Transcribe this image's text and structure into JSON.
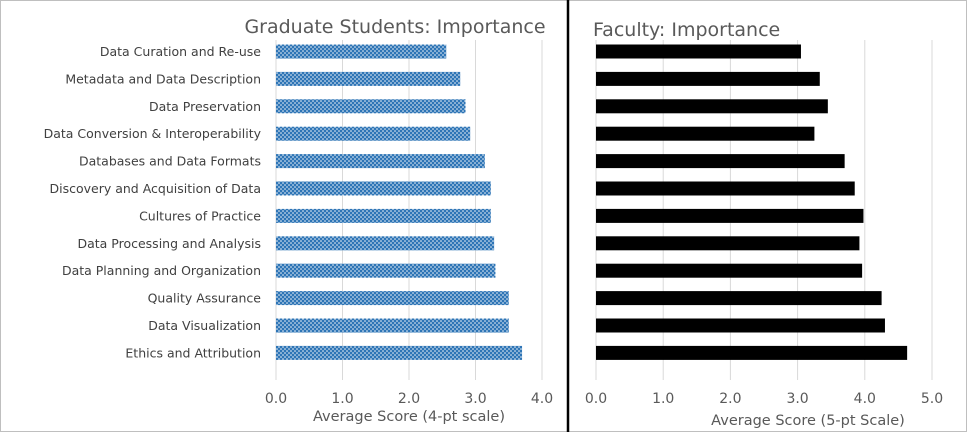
{
  "chart_data": [
    {
      "type": "bar",
      "orientation": "horizontal",
      "title": "Graduate Students: Importance",
      "xlabel": "Average Score (4-pt scale)",
      "ylabel": "",
      "xlim": [
        0,
        4
      ],
      "ticks": [
        "0.0",
        "1.0",
        "2.0",
        "3.0",
        "4.0"
      ],
      "grid": true,
      "bar_style": "dotted",
      "color": "#2E75B6",
      "categories": [
        "Data Curation and Re-use",
        "Metadata and Data Description",
        "Data Preservation",
        "Data Conversion & Interoperability",
        "Databases and Data Formats",
        "Discovery and Acquisition of Data",
        "Cultures of Practice",
        "Data Processing and Analysis",
        "Data Planning and Organization",
        "Quality Assurance",
        "Data Visualization",
        "Ethics and Attribution"
      ],
      "values": [
        2.56,
        2.77,
        2.85,
        2.92,
        3.14,
        3.23,
        3.23,
        3.28,
        3.3,
        3.5,
        3.5,
        3.7
      ]
    },
    {
      "type": "bar",
      "orientation": "horizontal",
      "title": "Faculty: Importance",
      "xlabel": "Average Score (5-pt Scale)",
      "ylabel": "",
      "xlim": [
        0,
        5
      ],
      "ticks": [
        "0.0",
        "1.0",
        "2.0",
        "3.0",
        "4.0",
        "5.0"
      ],
      "grid": true,
      "bar_style": "solid",
      "color": "#000000",
      "values": [
        3.05,
        3.33,
        3.45,
        3.25,
        3.7,
        3.85,
        3.98,
        3.92,
        3.96,
        4.25,
        4.3,
        4.63
      ]
    }
  ]
}
